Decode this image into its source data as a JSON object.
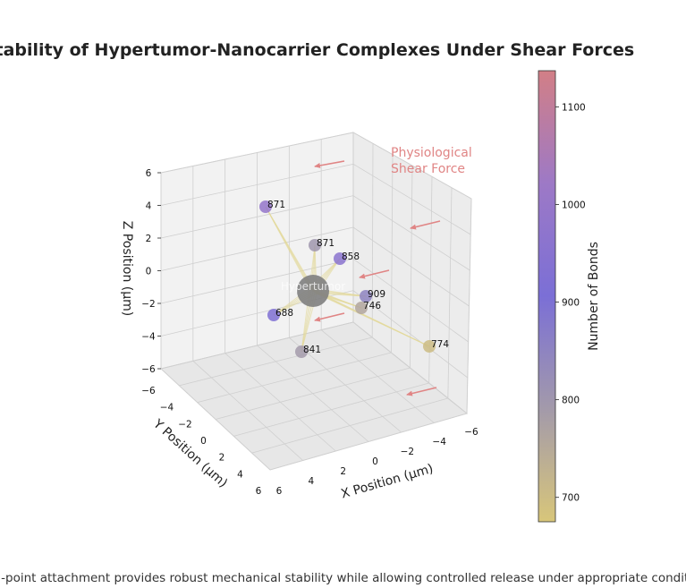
{
  "chart_data": {
    "type": "scatter3d",
    "title": "Stability of Hypertumor-Nanocarrier Complexes Under Shear Forces",
    "caption": "Multi-point attachment provides robust mechanical stability while allowing controlled release under appropriate conditions",
    "xlabel": "X Position (μm)",
    "ylabel": "Y Position (μm)",
    "zlabel": "Z Position (μm)",
    "xlim": [
      -6,
      6
    ],
    "ylim": [
      -6,
      6
    ],
    "zlim": [
      -6,
      6
    ],
    "x_ticks": [
      "−6",
      "−4",
      "−2",
      "0",
      "2",
      "4",
      "6"
    ],
    "y_ticks": [
      "−6",
      "−4",
      "−2",
      "0",
      "2",
      "4",
      "6"
    ],
    "z_ticks": [
      "−6",
      "−4",
      "−2",
      "0",
      "2",
      "4",
      "6"
    ],
    "grid": true,
    "center": {
      "label": "Hypertumor",
      "color": "#808080"
    },
    "points": [
      {
        "label": "871",
        "bonds": 990
      },
      {
        "label": "871",
        "bonds": 800
      },
      {
        "label": "858",
        "bonds": 960
      },
      {
        "label": "909",
        "bonds": 850
      },
      {
        "label": "746",
        "bonds": 760
      },
      {
        "label": "688",
        "bonds": 920
      },
      {
        "label": "841",
        "bonds": 790
      },
      {
        "label": "774",
        "bonds": 700
      }
    ],
    "annotation": "Physiological\nShear Force",
    "colorbar": {
      "label": "Number of Bonds",
      "min": 675,
      "max": 1137,
      "ticks": [
        700,
        800,
        900,
        1000,
        1100
      ],
      "tick_labels": [
        "700",
        "800",
        "900",
        "1000",
        "1100"
      ],
      "colormap": [
        "#d8c67a",
        "#a39aaa",
        "#7b6fd6",
        "#9d79c6",
        "#d27f86"
      ]
    },
    "colors": {
      "bond_line": "#e3d99a",
      "shear_arrow": "#e08585"
    }
  }
}
